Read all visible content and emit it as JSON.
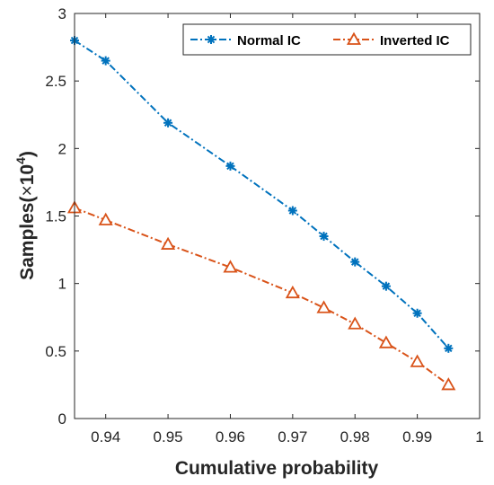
{
  "chart_data": {
    "type": "line",
    "xlabel": "Cumulative probability",
    "ylabel_main": "Samples(",
    "ylabel_times": "×",
    "ylabel_base": "10",
    "ylabel_exp": "4",
    "ylabel_close": ")",
    "xlim": [
      0.935,
      1.0
    ],
    "ylim": [
      0,
      3
    ],
    "xticks": [
      0.94,
      0.95,
      0.96,
      0.97,
      0.98,
      0.99,
      1
    ],
    "xtick_labels": [
      "0.94",
      "0.95",
      "0.96",
      "0.97",
      "0.98",
      "0.99",
      "1"
    ],
    "yticks": [
      0,
      0.5,
      1,
      1.5,
      2,
      2.5,
      3
    ],
    "ytick_labels": [
      "0",
      "0.5",
      "1",
      "1.5",
      "2",
      "2.5",
      "3"
    ],
    "grid": false,
    "legend_position": "top-right",
    "x": [
      0.935,
      0.94,
      0.95,
      0.96,
      0.97,
      0.975,
      0.98,
      0.985,
      0.99,
      0.995
    ],
    "series": [
      {
        "name": "Normal IC",
        "color": "#0072BD",
        "marker": "asterisk",
        "values": [
          2.8,
          2.65,
          2.19,
          1.87,
          1.54,
          1.35,
          1.16,
          0.98,
          0.78,
          0.52
        ]
      },
      {
        "name": "Inverted IC",
        "color": "#D95319",
        "marker": "triangle",
        "values": [
          1.56,
          1.47,
          1.29,
          1.12,
          0.93,
          0.82,
          0.7,
          0.56,
          0.42,
          0.25
        ]
      }
    ]
  }
}
